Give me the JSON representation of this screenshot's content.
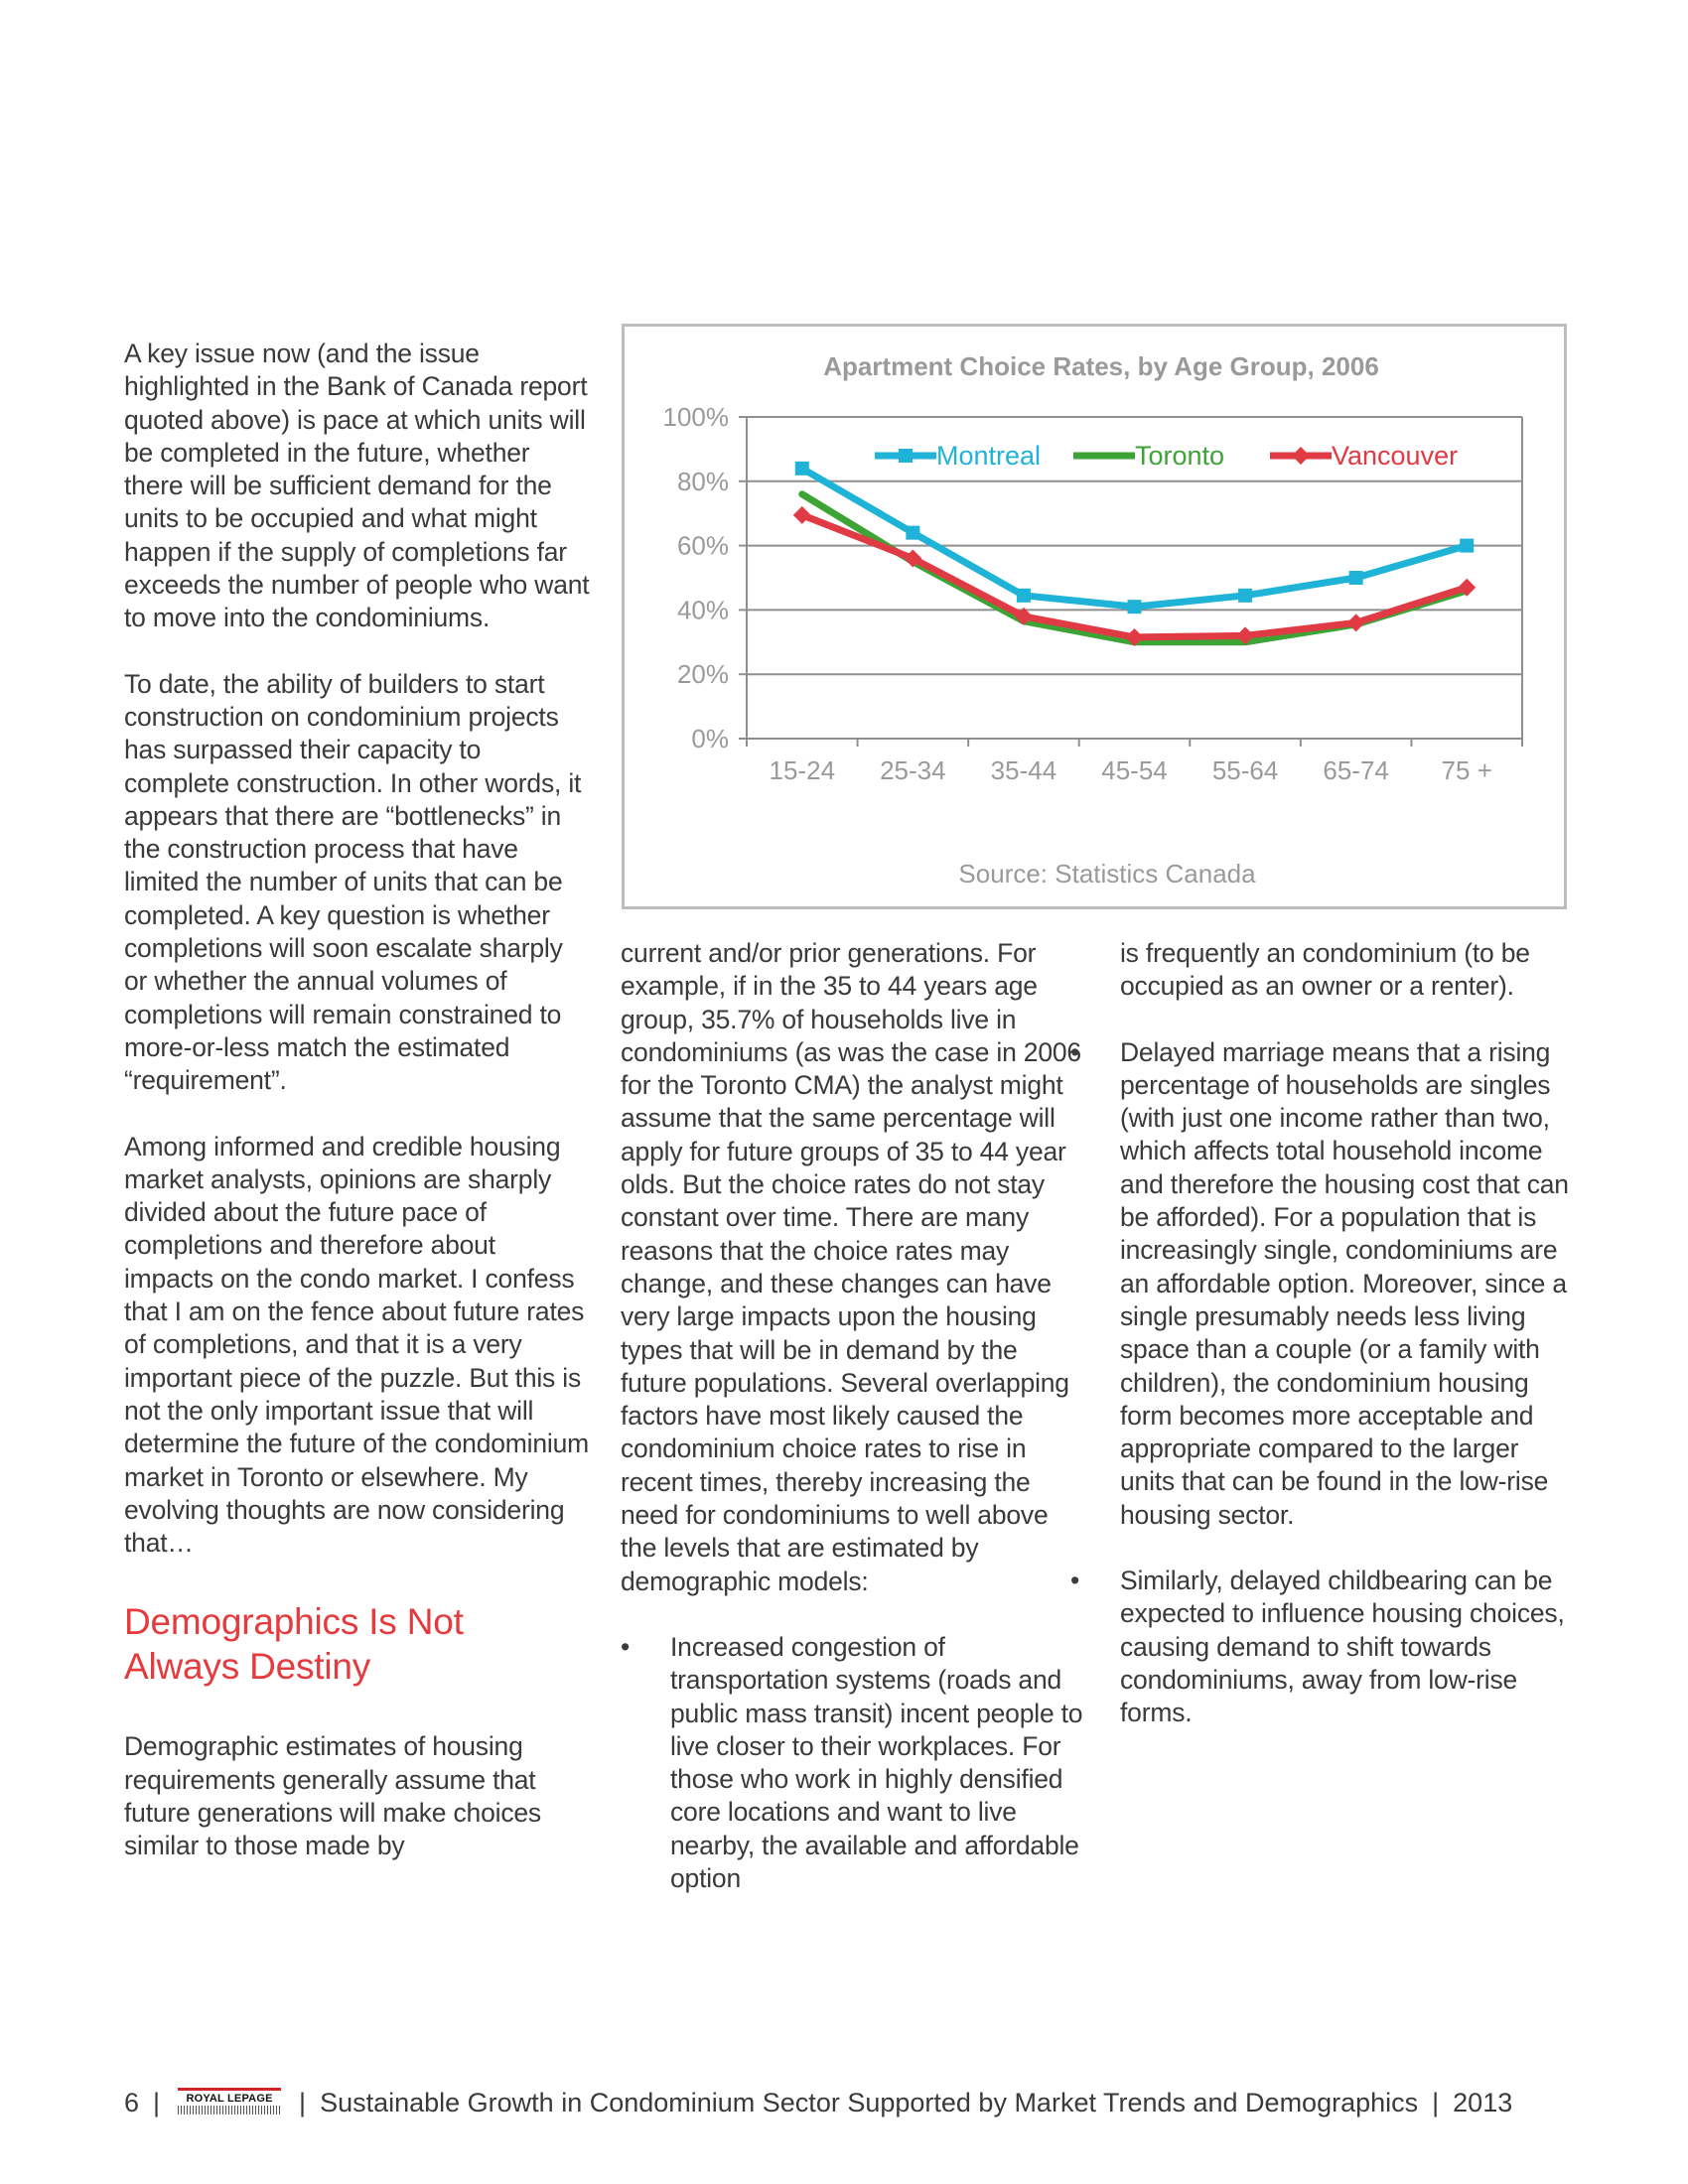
{
  "col1": {
    "p1": "A key issue now (and the issue highlighted in the Bank of Canada report quoted above) is pace at which units will be completed in the future, whether there will be sufficient demand for the units to be occupied and what might happen if the supply of completions far exceeds the number of people who want to move into the condominiums.",
    "p2": "To date, the ability of builders to start construction on condominium projects has surpassed their capacity to complete construction.  In other words, it appears that there are “bottlenecks” in the construction process that have limited the number of units that can be completed.  A key question is whether completions will soon escalate sharply or whether the annual volumes of completions will remain constrained to more-or-less match the estimated “requirement”.",
    "p3": "Among informed and credible housing market analysts, opinions are sharply divided about the future pace of completions and therefore about impacts on the condo market. I confess that I am on the fence about future rates of completions, and that it is a very important piece of the puzzle.  But this is not the only important issue that will determine the future of the condominium market in Toronto or elsewhere. My evolving thoughts are now considering that…",
    "heading_line1": "Demographics Is Not",
    "heading_line2": "Always Destiny",
    "p4": "Demographic estimates of housing requirements generally assume that future generations will make choices similar to those made by"
  },
  "col2": {
    "p1": "current and/or prior generations. For example, if in the 35 to 44 years age group, 35.7% of households live in condominiums (as was the case in 2006 for the Toronto CMA) the analyst might assume that the same percentage will apply for future groups of 35 to 44 year olds.  But the choice rates do not stay constant over time. There are many reasons that the choice rates may change, and these changes can have very large impacts upon the housing types that will be in demand by the future populations. Several overlapping factors have most likely caused the condominium choice rates to rise in recent times, thereby increasing the need for condominiums to well above the levels that are estimated by demographic models:",
    "bullet1": "Increased congestion of transportation systems (roads and public mass transit) incent people to live closer to their workplaces.  For those who work in highly densified core locations and want to live nearby, the available and affordable option"
  },
  "col3": {
    "p1": "is frequently an condominium (to be occupied as an owner or a renter).",
    "bullet2": "Delayed marriage means that a rising percentage of households are singles (with just one income rather than two, which affects total household income and therefore the housing cost that can be afforded).  For a population that is increasingly single, condominiums are an affordable option.  Moreover, since a single presumably needs less living space than a couple (or a family with children), the condominium housing form becomes more acceptable and appropriate compared to the larger units that can be found in the low-rise housing sector.",
    "bullet3": "Similarly, delayed childbearing can be expected to influence housing choices, causing demand to shift towards condominiums, away from low-rise forms."
  },
  "bullet_symbol": "•",
  "chart_data": {
    "type": "line",
    "title": "Apartment Choice Rates, by Age Group, 2006",
    "xlabel": "Source:  Statistics Canada",
    "ylabel": "",
    "categories": [
      "15-24",
      "25-34",
      "35-44",
      "45-54",
      "55-64",
      "65-74",
      "75 +"
    ],
    "ylim": [
      0,
      100
    ],
    "yticks": [
      "0%",
      "20%",
      "40%",
      "60%",
      "80%",
      "100%"
    ],
    "ytick_values": [
      0,
      20,
      40,
      60,
      80,
      100
    ],
    "grid": true,
    "legend": "top-right",
    "series": [
      {
        "name": "Montreal",
        "color": "#1fb3d8",
        "marker": "square",
        "values": [
          84,
          64,
          44.5,
          41,
          44.5,
          50,
          60
        ]
      },
      {
        "name": "Toronto",
        "color": "#3da335",
        "marker": "none",
        "values": [
          76,
          55,
          36.5,
          30,
          30,
          35.5,
          46
        ]
      },
      {
        "name": "Vancouver",
        "color": "#e03a44",
        "marker": "diamond",
        "values": [
          69.5,
          56,
          38,
          31.5,
          32,
          36,
          47
        ]
      }
    ]
  },
  "footer": {
    "page_number": "6",
    "separator": "|",
    "logo_text": "ROYAL LEPAGE",
    "title": "Sustainable Growth in Condominium Sector Supported by Market Trends and Demographics",
    "year": "2013"
  }
}
